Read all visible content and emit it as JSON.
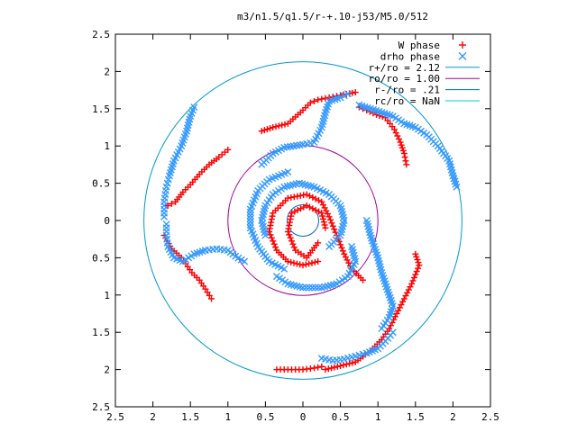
{
  "chart_data": {
    "type": "scatter",
    "title": "m3/n1.5/q1.5/r-+.10-j53/M5.0/512",
    "xlabel": "",
    "ylabel": "",
    "xlim": [
      -2.5,
      2.5
    ],
    "ylim": [
      -2.5,
      2.5
    ],
    "x_ticks": [
      -2.5,
      -2,
      -1.5,
      -1,
      -0.5,
      0,
      0.5,
      1,
      1.5,
      2,
      2.5
    ],
    "y_ticks": [
      -2.5,
      -2,
      -1.5,
      -1,
      -0.5,
      0,
      0.5,
      1,
      1.5,
      2,
      2.5
    ],
    "x_tick_labels": [
      "2.5",
      "2",
      "1.5",
      "1",
      "0.5",
      "0",
      "0.5",
      "1",
      "1.5",
      "2",
      "2.5"
    ],
    "y_tick_labels": [
      "2.5",
      "2",
      "1.5",
      "1",
      "0.5",
      "0",
      "0.5",
      "1",
      "1.5",
      "2",
      "2.5"
    ],
    "grid": false,
    "legend_position": "top-right",
    "series": [
      {
        "name": "W phase",
        "marker": "plus",
        "color": "#ff0000",
        "spiral_arms": [
          [
            [
              -1.0,
              0.95
            ],
            [
              -1.12,
              0.85
            ],
            [
              -1.25,
              0.75
            ],
            [
              -1.38,
              0.62
            ],
            [
              -1.5,
              0.48
            ],
            [
              -1.6,
              0.38
            ],
            [
              -1.7,
              0.25
            ],
            [
              -1.8,
              0.2
            ]
          ],
          [
            [
              -1.22,
              -1.05
            ],
            [
              -1.3,
              -0.92
            ],
            [
              -1.38,
              -0.8
            ],
            [
              -1.48,
              -0.7
            ],
            [
              -1.62,
              -0.5
            ],
            [
              -1.75,
              -0.38
            ],
            [
              -1.85,
              -0.2
            ]
          ],
          [
            [
              -0.55,
              1.2
            ],
            [
              -0.4,
              1.25
            ],
            [
              -0.2,
              1.3
            ],
            [
              0.0,
              1.48
            ],
            [
              0.1,
              1.58
            ],
            [
              0.2,
              1.62
            ],
            [
              0.35,
              1.65
            ],
            [
              0.5,
              1.68
            ],
            [
              0.7,
              1.72
            ]
          ],
          [
            [
              0.75,
              1.52
            ],
            [
              0.85,
              1.48
            ],
            [
              0.98,
              1.42
            ],
            [
              1.1,
              1.38
            ],
            [
              1.22,
              1.22
            ],
            [
              1.3,
              1.05
            ],
            [
              1.35,
              0.9
            ],
            [
              1.38,
              0.75
            ]
          ],
          [
            [
              0.3,
              -2.0
            ],
            [
              0.5,
              -1.95
            ],
            [
              0.7,
              -1.9
            ],
            [
              0.9,
              -1.75
            ],
            [
              1.05,
              -1.6
            ],
            [
              1.15,
              -1.45
            ],
            [
              1.25,
              -1.25
            ],
            [
              1.35,
              -1.05
            ],
            [
              1.45,
              -0.85
            ],
            [
              1.55,
              -0.6
            ],
            [
              1.5,
              -0.45
            ]
          ],
          [
            [
              -0.35,
              -2.0
            ],
            [
              -0.2,
              -2.0
            ],
            [
              0.0,
              -2.0
            ],
            [
              0.15,
              -1.98
            ],
            [
              0.25,
              -1.96
            ]
          ],
          [
            [
              0.2,
              -0.3
            ],
            [
              0.05,
              -0.5
            ],
            [
              -0.1,
              -0.4
            ],
            [
              -0.2,
              -0.15
            ],
            [
              -0.15,
              0.1
            ],
            [
              0.05,
              0.2
            ],
            [
              0.25,
              0.1
            ],
            [
              0.3,
              -0.1
            ]
          ],
          [
            [
              0.8,
              -0.8
            ],
            [
              0.65,
              -0.65
            ],
            [
              0.55,
              -0.45
            ],
            [
              0.45,
              -0.2
            ],
            [
              0.35,
              0.05
            ],
            [
              0.25,
              0.25
            ],
            [
              0.05,
              0.35
            ],
            [
              -0.2,
              0.3
            ],
            [
              -0.4,
              0.1
            ],
            [
              -0.45,
              -0.15
            ],
            [
              -0.35,
              -0.4
            ],
            [
              -0.2,
              -0.55
            ],
            [
              0.0,
              -0.6
            ],
            [
              0.2,
              -0.55
            ]
          ]
        ]
      },
      {
        "name": "drho phase",
        "marker": "cross",
        "color": "#3399ff",
        "spiral_arms": [
          [
            [
              -1.85,
              0.05
            ],
            [
              -1.85,
              0.25
            ],
            [
              -1.82,
              0.45
            ],
            [
              -1.78,
              0.6
            ],
            [
              -1.72,
              0.8
            ],
            [
              -1.62,
              1.0
            ],
            [
              -1.55,
              1.2
            ],
            [
              -1.5,
              1.4
            ],
            [
              -1.45,
              1.52
            ]
          ],
          [
            [
              -1.82,
              -0.05
            ],
            [
              -1.82,
              -0.2
            ],
            [
              -1.8,
              -0.35
            ],
            [
              -1.72,
              -0.5
            ],
            [
              -1.6,
              -0.55
            ],
            [
              -1.45,
              -0.45
            ],
            [
              -1.3,
              -0.4
            ],
            [
              -1.15,
              -0.38
            ],
            [
              -1.0,
              -0.4
            ],
            [
              -0.9,
              -0.48
            ],
            [
              -0.78,
              -0.55
            ]
          ],
          [
            [
              -0.55,
              0.75
            ],
            [
              -0.4,
              0.9
            ],
            [
              -0.25,
              0.98
            ],
            [
              0.0,
              1.02
            ],
            [
              0.15,
              1.05
            ],
            [
              0.25,
              1.25
            ],
            [
              0.3,
              1.45
            ],
            [
              0.35,
              1.6
            ],
            [
              0.5,
              1.65
            ],
            [
              0.6,
              1.7
            ]
          ],
          [
            [
              0.75,
              1.55
            ],
            [
              0.9,
              1.5
            ],
            [
              1.05,
              1.45
            ],
            [
              1.2,
              1.4
            ],
            [
              1.35,
              1.3
            ],
            [
              1.5,
              1.25
            ],
            [
              1.65,
              1.15
            ],
            [
              1.8,
              1.0
            ],
            [
              1.95,
              0.8
            ],
            [
              2.0,
              0.6
            ],
            [
              2.05,
              0.45
            ]
          ],
          [
            [
              0.85,
              -0.0
            ],
            [
              0.9,
              -0.2
            ],
            [
              0.95,
              -0.35
            ],
            [
              1.0,
              -0.5
            ],
            [
              1.05,
              -0.7
            ],
            [
              1.1,
              -0.85
            ],
            [
              1.15,
              -1.0
            ],
            [
              1.2,
              -1.15
            ],
            [
              1.15,
              -1.3
            ],
            [
              1.05,
              -1.45
            ]
          ],
          [
            [
              0.25,
              -1.85
            ],
            [
              0.4,
              -1.88
            ],
            [
              0.55,
              -1.86
            ],
            [
              0.7,
              -1.82
            ],
            [
              0.85,
              -1.78
            ],
            [
              1.0,
              -1.72
            ],
            [
              1.1,
              -1.62
            ],
            [
              1.2,
              -1.5
            ]
          ],
          [
            [
              -0.5,
              -0.2
            ],
            [
              -0.55,
              0.0
            ],
            [
              -0.5,
              0.2
            ],
            [
              -0.4,
              0.35
            ],
            [
              -0.25,
              0.45
            ],
            [
              -0.05,
              0.5
            ],
            [
              0.15,
              0.45
            ],
            [
              0.35,
              0.35
            ],
            [
              0.5,
              0.2
            ],
            [
              0.55,
              0.0
            ],
            [
              0.5,
              -0.2
            ],
            [
              0.35,
              -0.35
            ]
          ],
          [
            [
              -0.25,
              -0.65
            ],
            [
              -0.45,
              -0.55
            ],
            [
              -0.6,
              -0.35
            ],
            [
              -0.7,
              -0.1
            ],
            [
              -0.7,
              0.15
            ],
            [
              -0.6,
              0.4
            ],
            [
              -0.45,
              0.55
            ],
            [
              -0.2,
              0.65
            ]
          ],
          [
            [
              0.65,
              -0.35
            ],
            [
              0.7,
              -0.55
            ],
            [
              0.6,
              -0.75
            ],
            [
              0.45,
              -0.85
            ],
            [
              0.25,
              -0.9
            ],
            [
              0.0,
              -0.9
            ],
            [
              -0.2,
              -0.85
            ],
            [
              -0.35,
              -0.75
            ]
          ]
        ]
      }
    ],
    "circles": [
      {
        "name": "r+/ro = 2.12",
        "radius": 2.12,
        "color": "#0099cc"
      },
      {
        "name": "ro/ro = 1.00",
        "radius": 1.0,
        "color": "#a000a0"
      },
      {
        "name": "r-/ro = .21",
        "radius": 0.21,
        "color": "#0066cc"
      },
      {
        "name": "rc/ro = NaN",
        "radius": null,
        "color": "#00cccc"
      }
    ]
  }
}
